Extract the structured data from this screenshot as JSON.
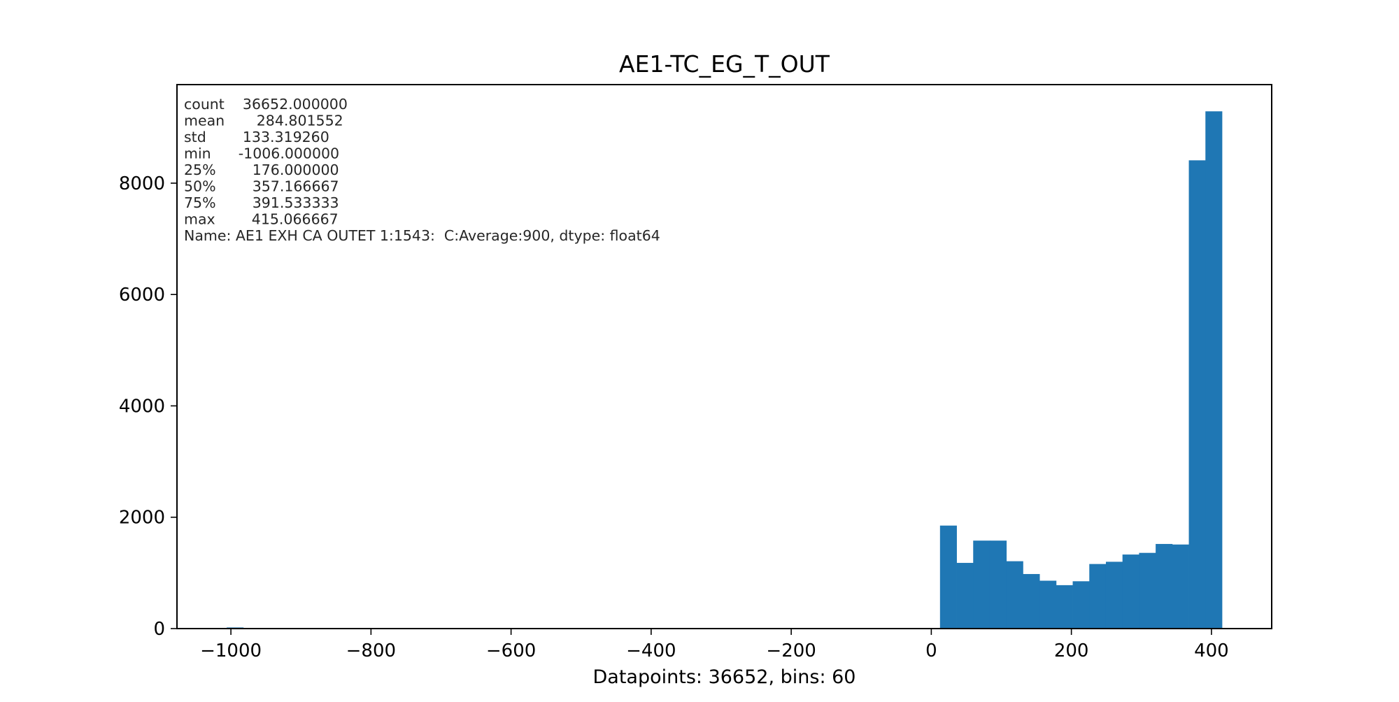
{
  "chart_data": {
    "type": "bar",
    "title": "AE1-TC_EG_T_OUT",
    "xlabel": "Datapoints: 36652, bins: 60",
    "ylabel": "",
    "xlim": [
      -1077,
      486
    ],
    "ylim": [
      0,
      9770
    ],
    "grid": false,
    "bar_color": "#1f77b4",
    "bin_range": [
      -1006.0,
      415.066667
    ],
    "bins": 60,
    "counts": [
      20,
      0,
      0,
      0,
      0,
      0,
      0,
      0,
      0,
      0,
      0,
      0,
      0,
      0,
      0,
      0,
      0,
      0,
      0,
      0,
      0,
      0,
      0,
      0,
      0,
      0,
      0,
      0,
      0,
      0,
      0,
      0,
      0,
      0,
      0,
      0,
      0,
      0,
      0,
      0,
      0,
      0,
      0,
      1850,
      1180,
      1580,
      1580,
      1210,
      980,
      860,
      780,
      850,
      1160,
      1200,
      1330,
      1360,
      1520,
      1510,
      8410,
      9290
    ],
    "xticks": [
      -1000,
      -800,
      -600,
      -400,
      -200,
      0,
      200,
      400
    ],
    "xtick_labels": [
      "−1000",
      "−800",
      "−600",
      "−400",
      "−200",
      "0",
      "200",
      "400"
    ],
    "yticks": [
      0,
      2000,
      4000,
      6000,
      8000
    ],
    "ytick_labels": [
      "0",
      "2000",
      "4000",
      "6000",
      "8000"
    ],
    "stats_lines": [
      "count    36652.000000",
      "mean       284.801552",
      "std        133.319260",
      "min      -1006.000000",
      "25%        176.000000",
      "50%        357.166667",
      "75%        391.533333",
      "max        415.066667",
      "Name: AE1 EXH CA OUTET 1:1543:  C:Average:900, dtype: float64"
    ]
  }
}
